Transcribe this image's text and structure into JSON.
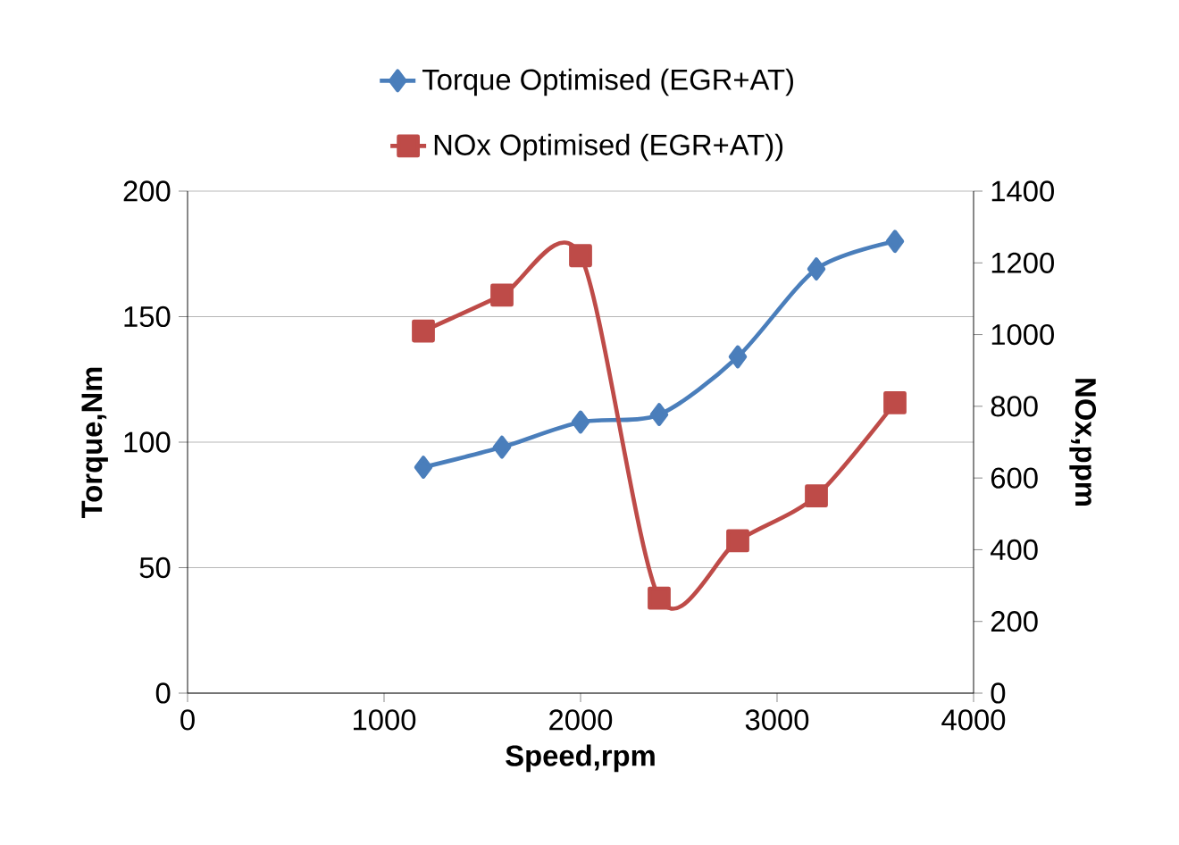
{
  "chart_data": {
    "type": "line",
    "xlabel": "Speed,rpm",
    "ylabel": "Torque,Nm",
    "y2label": "NOx,ppm",
    "x": [
      1200,
      1600,
      2000,
      2400,
      2800,
      3200,
      3600
    ],
    "series": [
      {
        "name": "Torque Optimised (EGR+AT)",
        "color": "#4a7ebb",
        "values": [
          90,
          98,
          108,
          111,
          134,
          169,
          180
        ],
        "marker": "diamond"
      },
      {
        "name": "NOx Optimised (EGR+AT))",
        "color": "#be4b48",
        "values": [
          1010,
          1110,
          1220,
          265,
          425,
          550,
          810
        ],
        "marker": "square",
        "axis": "y2"
      }
    ],
    "xlim": [
      0,
      4000
    ],
    "xticks": [
      0,
      1000,
      2000,
      3000,
      4000
    ],
    "ylim": [
      0,
      200
    ],
    "yticks": [
      0,
      50,
      100,
      150,
      200
    ],
    "y2lim": [
      0,
      1400
    ],
    "y2ticks": [
      0,
      200,
      400,
      600,
      800,
      1000,
      1200,
      1400
    ],
    "grid": "y",
    "legend": "top",
    "line_style": "solid"
  }
}
